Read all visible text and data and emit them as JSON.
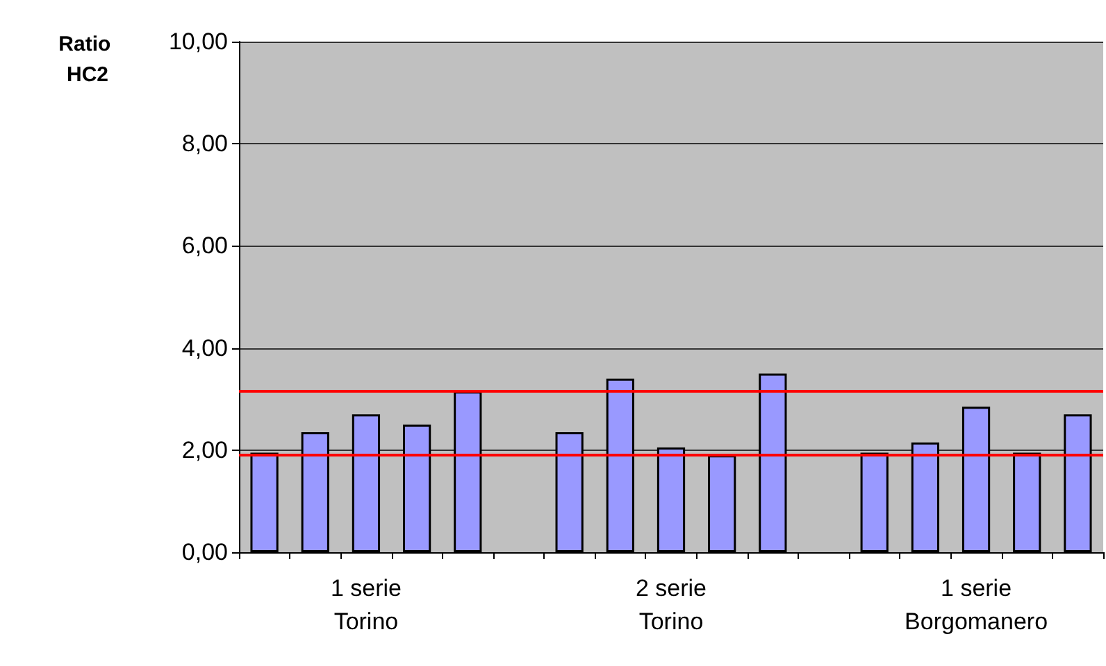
{
  "chart_data": {
    "type": "bar",
    "ylabel": "Ratio HC2",
    "categories": [
      null,
      null,
      "1 serie\nTorino",
      null,
      null,
      null,
      null,
      null,
      "2 serie\nTorino",
      null,
      null,
      null,
      null,
      null,
      "1 serie\nBorgomanero",
      null,
      null
    ],
    "series": [
      {
        "color": "#9999ff",
        "values": [
          1.95,
          2.35,
          2.7,
          2.5,
          3.15,
          null,
          2.35,
          3.4,
          2.05,
          1.9,
          3.5,
          null,
          1.95,
          2.15,
          2.85,
          1.95,
          2.7
        ]
      }
    ],
    "ylim": [
      0,
      10
    ],
    "yticks": [
      {
        "value": 0,
        "label": "0,00"
      },
      {
        "value": 2,
        "label": "2,00"
      },
      {
        "value": 4,
        "label": "4,00"
      },
      {
        "value": 6,
        "label": "6,00"
      },
      {
        "value": 8,
        "label": "8,00"
      },
      {
        "value": 10,
        "label": "10,00"
      }
    ],
    "ref_lines": [
      {
        "axis": "y",
        "value": 3.15,
        "color": "#ff0000"
      },
      {
        "axis": "y",
        "value": 1.9,
        "color": "#ff0000"
      }
    ],
    "grid": "y"
  }
}
